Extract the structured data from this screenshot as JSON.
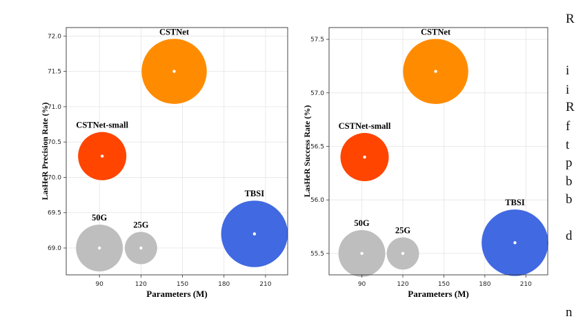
{
  "chart_data": [
    {
      "type": "scatter",
      "xlabel": "Parameters (M)",
      "ylabel": "LasHeR Precision Rate (%)",
      "xticks": [
        90,
        120,
        150,
        180,
        210
      ],
      "yticks": [
        "69.0",
        "69.5",
        "70.0",
        "70.5",
        "71.0",
        "71.5",
        "72.0"
      ],
      "xlim": [
        66,
        226
      ],
      "ylim": [
        68.62,
        72.12
      ],
      "grid": true,
      "points": [
        {
          "label": "CSTNet",
          "x": 144,
          "y": 71.5,
          "color": "#FF8C00",
          "size": 1.35
        },
        {
          "label": "CSTNet-small",
          "x": 92,
          "y": 70.3,
          "color": "#FF4500",
          "size": 1.0
        },
        {
          "label": "TBSI",
          "x": 202,
          "y": 69.2,
          "color": "#4169E1",
          "size": 1.38
        },
        {
          "label": "50G",
          "x": 90,
          "y": 69.0,
          "color": "#BEBEBE",
          "size": 0.97
        },
        {
          "label": "25G",
          "x": 120,
          "y": 69.0,
          "color": "#BEBEBE",
          "size": 0.67
        }
      ]
    },
    {
      "type": "scatter",
      "xlabel": "Parameters (M)",
      "ylabel": "LasHeR Success Rate (%)",
      "xticks": [
        90,
        120,
        150,
        180,
        210
      ],
      "yticks": [
        "55.5",
        "56.0",
        "56.5",
        "57.0",
        "57.5"
      ],
      "xlim": [
        66,
        226
      ],
      "ylim": [
        55.3,
        57.61
      ],
      "grid": true,
      "points": [
        {
          "label": "CSTNet",
          "x": 144,
          "y": 57.2,
          "color": "#FF8C00",
          "size": 1.35
        },
        {
          "label": "CSTNet-small",
          "x": 92,
          "y": 56.4,
          "color": "#FF4500",
          "size": 1.0
        },
        {
          "label": "TBSI",
          "x": 202,
          "y": 55.6,
          "color": "#4169E1",
          "size": 1.38
        },
        {
          "label": "50G",
          "x": 90,
          "y": 55.5,
          "color": "#BEBEBE",
          "size": 0.97
        },
        {
          "label": "25G",
          "x": 120,
          "y": 55.5,
          "color": "#BEBEBE",
          "size": 0.67
        }
      ]
    }
  ],
  "side_text": [
    "R",
    "i",
    "i",
    "R",
    "f",
    "t",
    "p",
    "b",
    "b",
    "d",
    "n"
  ]
}
